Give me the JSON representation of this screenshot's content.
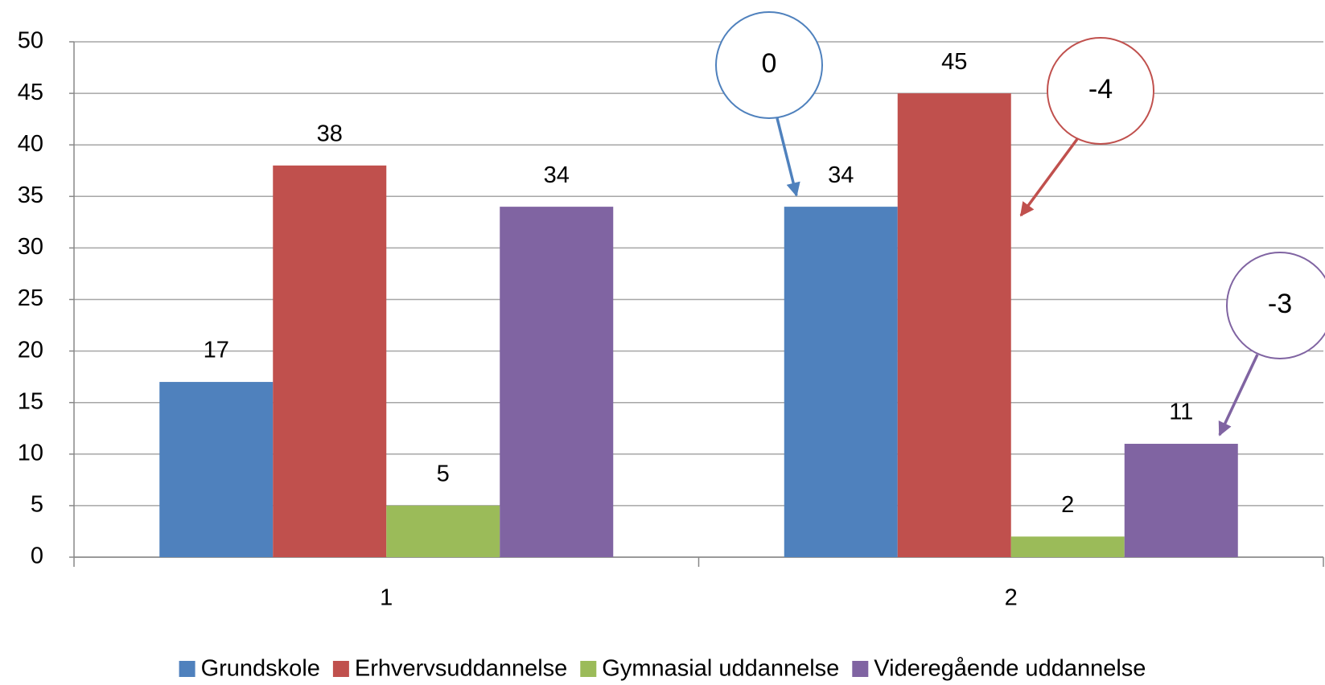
{
  "chart_data": {
    "type": "bar",
    "categories": [
      "1",
      "2"
    ],
    "series": [
      {
        "name": "Grundskole",
        "color": "#4f81bd",
        "values": [
          17,
          34
        ]
      },
      {
        "name": "Erhvervsuddannelse",
        "color": "#c0504d",
        "values": [
          38,
          45
        ]
      },
      {
        "name": "Gymnasial uddannelse",
        "color": "#9bbb59",
        "values": [
          5,
          2
        ]
      },
      {
        "name": "Videregående uddannelse",
        "color": "#8064a2",
        "values": [
          34,
          11
        ]
      }
    ],
    "ylim": [
      0,
      50
    ],
    "yticks": [
      0,
      5,
      10,
      15,
      20,
      25,
      30,
      35,
      40,
      45,
      50
    ],
    "grid": true,
    "legend": "bottom",
    "annotations": [
      {
        "text": "0",
        "color": "#4f81bd"
      },
      {
        "text": "-4",
        "color": "#c0504d"
      },
      {
        "text": "-3",
        "color": "#8064a2"
      }
    ]
  }
}
